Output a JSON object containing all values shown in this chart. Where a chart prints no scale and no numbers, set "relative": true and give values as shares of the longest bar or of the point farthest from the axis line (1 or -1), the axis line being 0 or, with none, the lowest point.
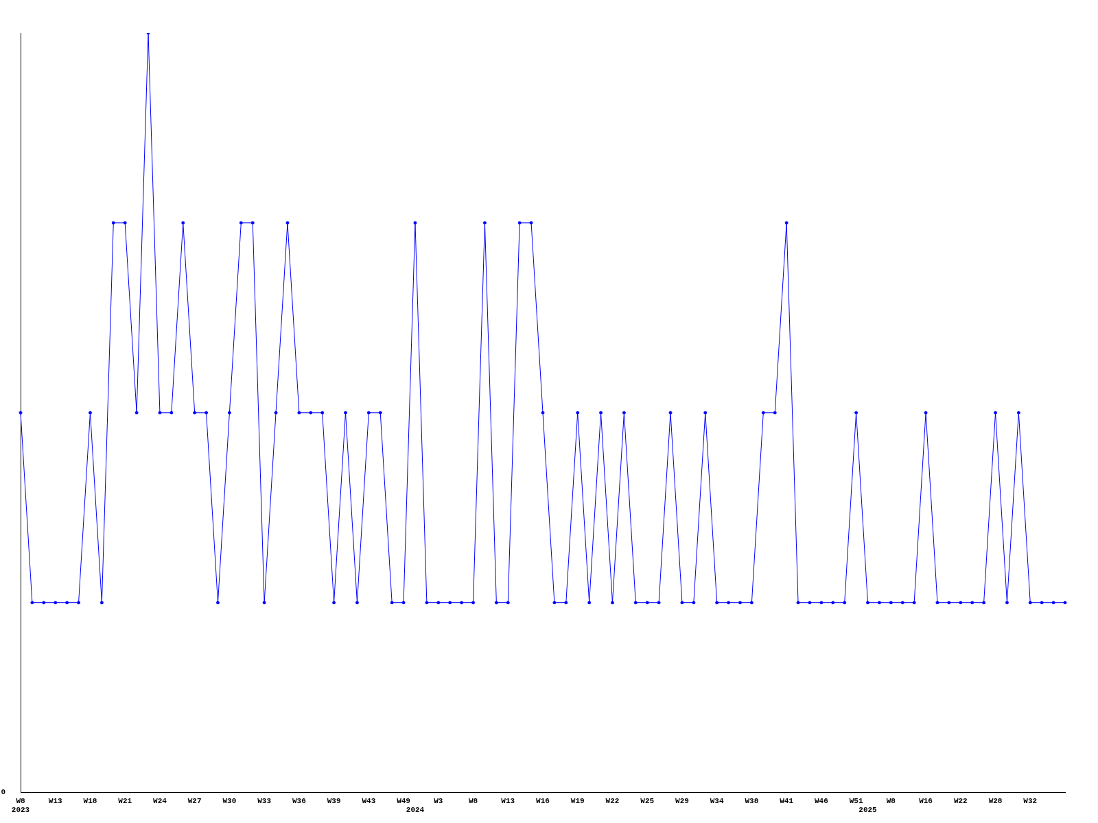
{
  "chart_data": {
    "type": "line",
    "relative": true,
    "color": "#0000ff",
    "marker": "circle",
    "line_style": "solid",
    "grid": false,
    "legend": false,
    "categories": [
      "W8\n2023",
      null,
      null,
      "W13",
      null,
      null,
      "W18",
      null,
      null,
      "W21",
      null,
      null,
      "W24",
      null,
      null,
      "W27",
      null,
      null,
      "W30",
      null,
      null,
      "W33",
      null,
      null,
      "W36",
      null,
      null,
      "W39",
      null,
      null,
      "W43",
      null,
      null,
      "W49",
      "\n2024",
      null,
      "W3",
      null,
      null,
      "W8",
      null,
      null,
      "W13",
      null,
      null,
      "W16",
      null,
      null,
      "W19",
      null,
      null,
      "W22",
      null,
      null,
      "W25",
      null,
      null,
      "W29",
      null,
      null,
      "W34",
      null,
      null,
      "W38",
      null,
      null,
      "W41",
      null,
      null,
      "W46",
      null,
      null,
      "W51",
      "\n2025",
      null,
      "W8",
      null,
      null,
      "W16",
      null,
      null,
      "W22",
      null,
      null,
      "W28",
      null,
      null,
      "W32",
      null,
      null,
      null
    ],
    "values": [
      0.5,
      0.25,
      0.25,
      0.25,
      0.25,
      0.25,
      0.5,
      0.25,
      0.75,
      0.75,
      0.5,
      1,
      0.5,
      0.5,
      0.75,
      0.5,
      0.5,
      0.25,
      0.5,
      0.75,
      0.75,
      0.25,
      0.5,
      0.75,
      0.5,
      0.5,
      0.5,
      0.25,
      0.5,
      0.25,
      0.5,
      0.5,
      0.25,
      0.25,
      0.75,
      0.25,
      0.25,
      0.25,
      0.25,
      0.25,
      0.75,
      0.25,
      0.25,
      0.75,
      0.75,
      0.5,
      0.25,
      0.25,
      0.5,
      0.25,
      0.5,
      0.25,
      0.5,
      0.25,
      0.25,
      0.25,
      0.5,
      0.25,
      0.25,
      0.5,
      0.25,
      0.25,
      0.25,
      0.25,
      0.5,
      0.5,
      0.75,
      0.25,
      0.25,
      0.25,
      0.25,
      0.25,
      0.5,
      0.25,
      0.25,
      0.25,
      0.25,
      0.25,
      0.5,
      0.25,
      0.25,
      0.25,
      0.25,
      0.25,
      0.5,
      0.25,
      0.5,
      0.25,
      0.25,
      0.25,
      0.25
    ],
    "annotations": [
      "0"
    ]
  }
}
